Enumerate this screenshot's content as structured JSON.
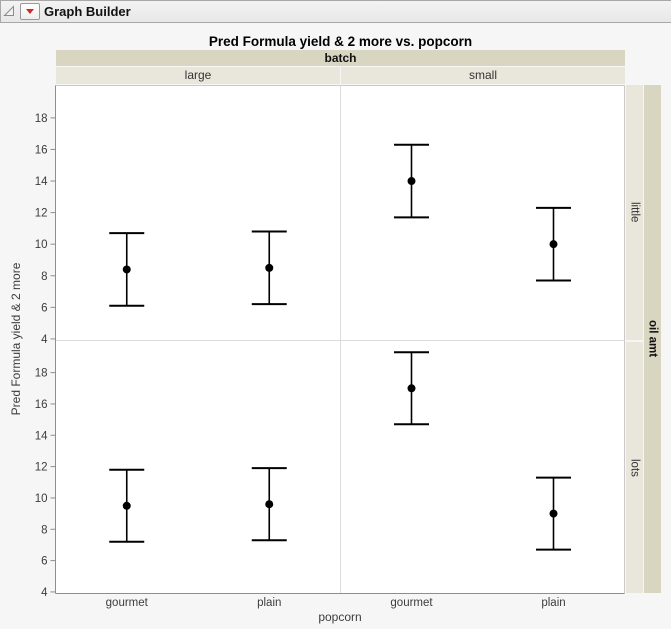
{
  "window": {
    "title": "Graph Builder",
    "disclosure_icon": "open-disclosure-triangle",
    "menu_icon": "red-triangle-menu"
  },
  "chart_data": {
    "type": "scatter",
    "subtype": "means-with-error-bars",
    "title": "Pred Formula yield & 2 more vs. popcorn",
    "ylabel": "Pred Formula yield & 2 more",
    "xlabel": "popcorn",
    "x_categories": [
      "gourmet",
      "plain"
    ],
    "column_facet": {
      "label": "batch",
      "levels": [
        "large",
        "small"
      ]
    },
    "row_facet": {
      "label": "oil amt",
      "levels": [
        "little",
        "lots"
      ]
    },
    "y_ticks": [
      4,
      6,
      8,
      10,
      12,
      14,
      16,
      18
    ],
    "panel_y_range": [
      3.9,
      20.05
    ],
    "grid": false,
    "legend": "none",
    "points": [
      {
        "batch": "large",
        "oil_amt": "little",
        "popcorn": "gourmet",
        "mean": 8.4,
        "lower": 6.1,
        "upper": 10.7
      },
      {
        "batch": "large",
        "oil_amt": "little",
        "popcorn": "plain",
        "mean": 8.5,
        "lower": 6.2,
        "upper": 10.8
      },
      {
        "batch": "small",
        "oil_amt": "little",
        "popcorn": "gourmet",
        "mean": 14.0,
        "lower": 11.7,
        "upper": 16.3
      },
      {
        "batch": "small",
        "oil_amt": "little",
        "popcorn": "plain",
        "mean": 10.0,
        "lower": 7.7,
        "upper": 12.3
      },
      {
        "batch": "large",
        "oil_amt": "lots",
        "popcorn": "gourmet",
        "mean": 9.5,
        "lower": 7.2,
        "upper": 11.8
      },
      {
        "batch": "large",
        "oil_amt": "lots",
        "popcorn": "plain",
        "mean": 9.6,
        "lower": 7.3,
        "upper": 11.9
      },
      {
        "batch": "small",
        "oil_amt": "lots",
        "popcorn": "gourmet",
        "mean": 17.0,
        "lower": 14.7,
        "upper": 19.3
      },
      {
        "batch": "small",
        "oil_amt": "lots",
        "popcorn": "plain",
        "mean": 9.0,
        "lower": 6.7,
        "upper": 11.3
      }
    ]
  },
  "colors": {
    "window_bg": "#f6f6f6",
    "titlebar_border": "#a8a8a8",
    "band_dark": "#d8d5c0",
    "band_light": "#e9e7db",
    "axis_line": "#8e8e8e",
    "panel_border": "#c9c9c9",
    "facet_divider": "#dcdcdc",
    "marker": "#000000",
    "red": "#d02b20",
    "tick_text": "#3c3c3c"
  }
}
